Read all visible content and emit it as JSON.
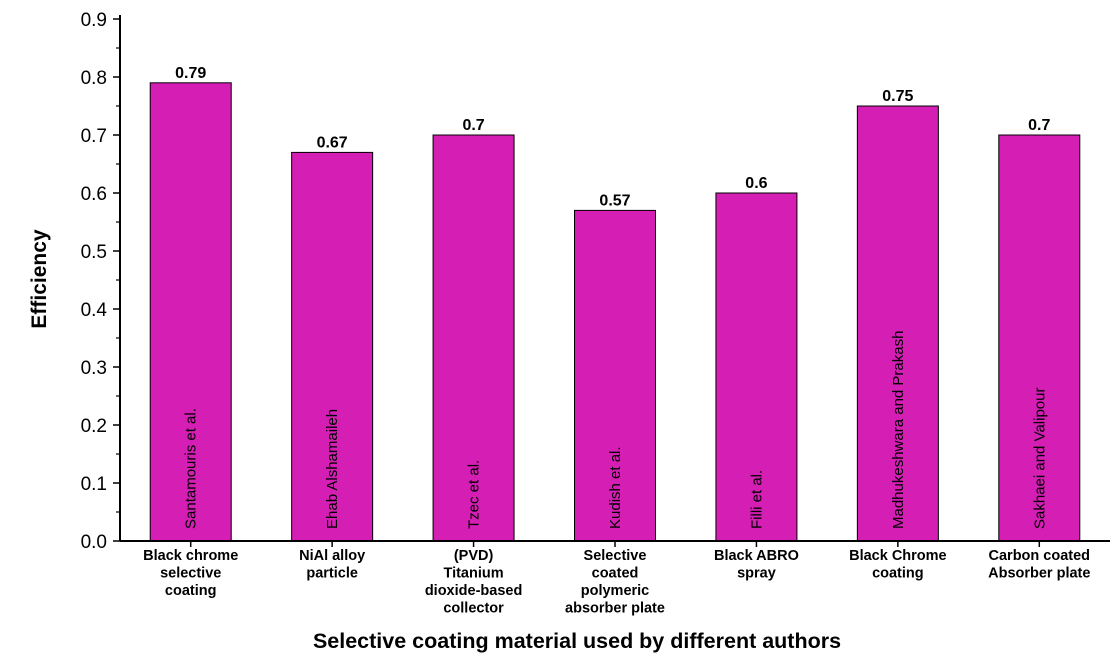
{
  "chart_data": {
    "type": "bar",
    "title": "",
    "xlabel": "Selective coating material used by different authors",
    "ylabel": "Efficiency",
    "ylim": [
      0.0,
      0.9
    ],
    "yticks": [
      "0.0",
      "0.1",
      "0.2",
      "0.3",
      "0.4",
      "0.5",
      "0.6",
      "0.7",
      "0.8",
      "0.9"
    ],
    "bar_color": "#d41eb4",
    "grid": false,
    "legend": "none",
    "categories": [
      [
        "Black chrome",
        "selective",
        "coating"
      ],
      [
        "NiAl alloy",
        "particle"
      ],
      [
        "(PVD)",
        "Titanium",
        "dioxide-based",
        "collector"
      ],
      [
        "Selective",
        "coated",
        "polymeric",
        "absorber plate"
      ],
      [
        "Black ABRO",
        "spray"
      ],
      [
        "Black Chrome",
        "coating"
      ],
      [
        "Carbon coated",
        "Absorber plate"
      ]
    ],
    "authors": [
      "Santamouris et al.",
      "Ehab Alshamaileh",
      "Tzec et al.",
      "Kudish et al.",
      "Filli et al.",
      "Madhukeshwara and Prakash",
      "Sakhaei and Valipour"
    ],
    "values": [
      0.79,
      0.67,
      0.7,
      0.57,
      0.6,
      0.75,
      0.7
    ],
    "value_labels": [
      "0.79",
      "0.67",
      "0.7",
      "0.57",
      "0.6",
      "0.75",
      "0.7"
    ]
  }
}
